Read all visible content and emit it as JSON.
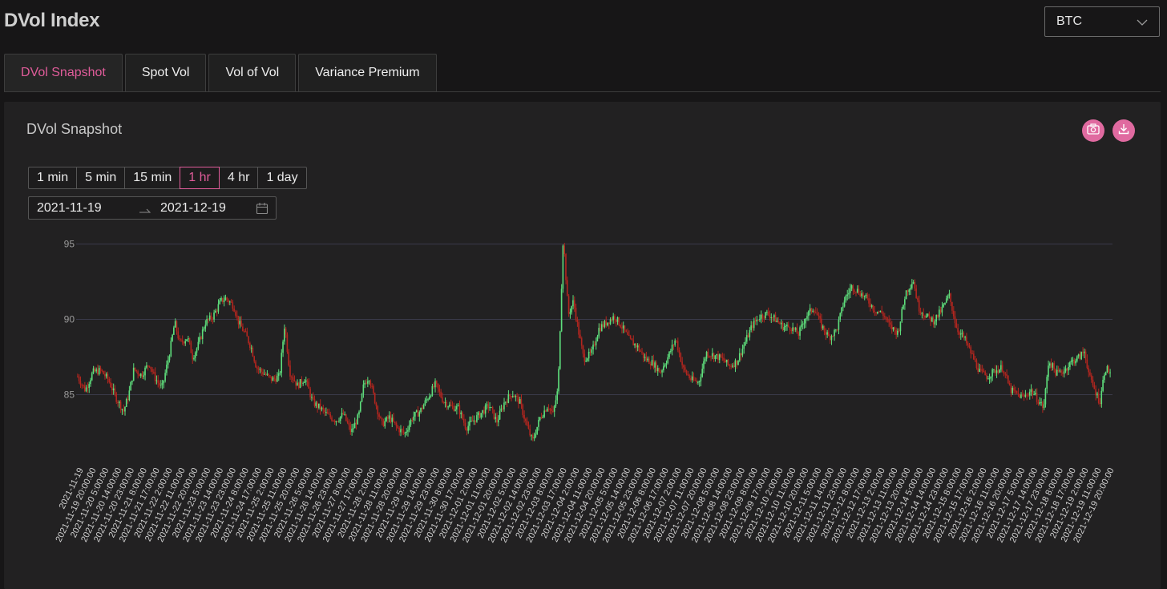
{
  "header": {
    "title": "DVol Index"
  },
  "asset_select": {
    "value": "BTC"
  },
  "tabs": [
    {
      "label": "DVol Snapshot"
    },
    {
      "label": "Spot Vol"
    },
    {
      "label": "Vol of Vol"
    },
    {
      "label": "Variance Premium"
    }
  ],
  "card": {
    "title": "DVol Snapshot",
    "camera_icon": "camera-icon",
    "download_icon": "download-icon"
  },
  "intervals": [
    "1 min",
    "5 min",
    "15 min",
    "1 hr",
    "4 hr",
    "1 day"
  ],
  "active_interval": "1 hr",
  "date_range": {
    "start": "2021-11-19",
    "end": "2021-12-19"
  },
  "colors": {
    "accent": "#e05c9a",
    "up": "#5ede7c",
    "down": "#b3261f",
    "grid": "#3a3a4a"
  },
  "chart_data": {
    "type": "candlestick",
    "y_ticks": [
      85,
      90,
      95
    ],
    "ylim": [
      81,
      96
    ],
    "x_tick_labels": [
      "2021-11-19  20:00:00",
      "2021-11-20  5:00:00",
      "2021-11-20  14:00:00",
      "2021-11-20  23:00:00",
      "2021-11-21  8:00:00",
      "2021-11-21  17:00:00",
      "2021-11-22  2:00:00",
      "2021-11-22  11:00:00",
      "2021-11-22  20:00:00",
      "2021-11-23  5:00:00",
      "2021-11-23  14:00:00",
      "2021-11-23  23:00:00",
      "2021-11-24  8:00:00",
      "2021-11-24  17:00:00",
      "2021-11-25  2:00:00",
      "2021-11-25  11:00:00",
      "2021-11-25  20:00:00",
      "2021-11-26  5:00:00",
      "2021-11-26  14:00:00",
      "2021-11-26  23:00:00",
      "2021-11-27  8:00:00",
      "2021-11-27  17:00:00",
      "2021-11-28  2:00:00",
      "2021-11-28  11:00:00",
      "2021-11-28  20:00:00",
      "2021-11-29  5:00:00",
      "2021-11-29  14:00:00",
      "2021-11-29  23:00:00",
      "2021-11-30  8:00:00",
      "2021-11-30  17:00:00",
      "2021-12-01  2:00:00",
      "2021-12-01  11:00:00",
      "2021-12-01  20:00:00",
      "2021-12-02  5:00:00",
      "2021-12-02  14:00:00",
      "2021-12-02  23:00:00",
      "2021-12-03  8:00:00",
      "2021-12-03  17:00:00",
      "2021-12-04  2:00:00",
      "2021-12-04  11:00:00",
      "2021-12-04  20:00:00",
      "2021-12-05  5:00:00",
      "2021-12-05  14:00:00",
      "2021-12-05  23:00:00",
      "2021-12-06  8:00:00",
      "2021-12-06  17:00:00",
      "2021-12-07  2:00:00",
      "2021-12-07  11:00:00",
      "2021-12-07  20:00:00",
      "2021-12-08  5:00:00",
      "2021-12-08  14:00:00",
      "2021-12-08  23:00:00",
      "2021-12-09  8:00:00",
      "2021-12-09  17:00:00",
      "2021-12-10  2:00:00",
      "2021-12-10  11:00:00",
      "2021-12-10  20:00:00",
      "2021-12-11  5:00:00",
      "2021-12-11  14:00:00",
      "2021-12-11  23:00:00",
      "2021-12-12  8:00:00",
      "2021-12-12  17:00:00",
      "2021-12-13  2:00:00",
      "2021-12-13  11:00:00",
      "2021-12-13  20:00:00",
      "2021-12-14  5:00:00",
      "2021-12-14  14:00:00",
      "2021-12-14  23:00:00",
      "2021-12-15  8:00:00",
      "2021-12-15  17:00:00",
      "2021-12-16  2:00:00",
      "2021-12-16  11:00:00",
      "2021-12-16  20:00:00",
      "2021-12-17  5:00:00",
      "2021-12-17  14:00:00",
      "2021-12-17  23:00:00",
      "2021-12-18  8:00:00",
      "2021-12-18  17:00:00",
      "2021-12-19  2:00:00",
      "2021-12-19  11:00:00",
      "2021-12-19  20:00:00"
    ],
    "first_x_label": "2021-11-19",
    "path_points": [
      [
        0,
        86.2
      ],
      [
        3,
        85.3
      ],
      [
        6,
        86.5
      ],
      [
        9,
        86.6
      ],
      [
        12,
        86.0
      ],
      [
        15,
        84.8
      ],
      [
        18,
        83.9
      ],
      [
        20,
        85.0
      ],
      [
        22,
        86.7
      ],
      [
        25,
        86.3
      ],
      [
        28,
        87.1
      ],
      [
        30,
        86.2
      ],
      [
        33,
        85.4
      ],
      [
        36,
        87.8
      ],
      [
        38,
        89.8
      ],
      [
        40,
        88.4
      ],
      [
        43,
        88.8
      ],
      [
        45,
        87.5
      ],
      [
        47,
        88.2
      ],
      [
        50,
        89.8
      ],
      [
        53,
        90.2
      ],
      [
        56,
        91.2
      ],
      [
        58,
        91.4
      ],
      [
        61,
        90.9
      ],
      [
        63,
        89.8
      ],
      [
        66,
        88.9
      ],
      [
        68,
        88.1
      ],
      [
        70,
        86.8
      ],
      [
        73,
        86.4
      ],
      [
        76,
        86.0
      ],
      [
        79,
        86.2
      ],
      [
        81,
        89.7
      ],
      [
        83,
        86.5
      ],
      [
        86,
        85.6
      ],
      [
        89,
        86.1
      ],
      [
        92,
        84.5
      ],
      [
        95,
        84.1
      ],
      [
        98,
        83.6
      ],
      [
        101,
        83.3
      ],
      [
        104,
        83.7
      ],
      [
        107,
        82.5
      ],
      [
        110,
        83.6
      ],
      [
        112,
        85.7
      ],
      [
        114,
        86.2
      ],
      [
        116,
        84.8
      ],
      [
        119,
        83.0
      ],
      [
        122,
        83.5
      ],
      [
        125,
        82.8
      ],
      [
        128,
        82.4
      ],
      [
        131,
        83.5
      ],
      [
        134,
        83.9
      ],
      [
        137,
        84.8
      ],
      [
        140,
        85.7
      ],
      [
        143,
        84.6
      ],
      [
        146,
        84.2
      ],
      [
        149,
        84.1
      ],
      [
        152,
        82.8
      ],
      [
        155,
        83.3
      ],
      [
        158,
        83.8
      ],
      [
        161,
        84.3
      ],
      [
        164,
        83.2
      ],
      [
        167,
        84.5
      ],
      [
        170,
        85.1
      ],
      [
        173,
        84.5
      ],
      [
        176,
        82.8
      ],
      [
        178,
        81.9
      ],
      [
        181,
        83.5
      ],
      [
        184,
        84.3
      ],
      [
        186,
        83.7
      ],
      [
        188,
        85.4
      ],
      [
        190,
        95.5
      ],
      [
        192,
        90.3
      ],
      [
        194,
        91.2
      ],
      [
        196,
        89.2
      ],
      [
        198,
        87.4
      ],
      [
        201,
        87.7
      ],
      [
        204,
        89.4
      ],
      [
        207,
        89.8
      ],
      [
        210,
        90.2
      ],
      [
        213,
        89.5
      ],
      [
        216,
        88.6
      ],
      [
        219,
        88.2
      ],
      [
        222,
        87.4
      ],
      [
        225,
        87.1
      ],
      [
        228,
        86.5
      ],
      [
        231,
        87.5
      ],
      [
        234,
        88.7
      ],
      [
        237,
        86.7
      ],
      [
        240,
        86.0
      ],
      [
        243,
        85.8
      ],
      [
        246,
        87.8
      ],
      [
        249,
        87.6
      ],
      [
        252,
        87.4
      ],
      [
        255,
        86.9
      ],
      [
        258,
        87.2
      ],
      [
        261,
        88.4
      ],
      [
        264,
        89.6
      ],
      [
        267,
        90.2
      ],
      [
        270,
        90.4
      ],
      [
        273,
        90.0
      ],
      [
        276,
        89.5
      ],
      [
        279,
        89.5
      ],
      [
        282,
        89.0
      ],
      [
        285,
        90.2
      ],
      [
        288,
        90.8
      ],
      [
        291,
        89.6
      ],
      [
        294,
        88.8
      ],
      [
        297,
        89.3
      ],
      [
        300,
        91.3
      ],
      [
        303,
        92.2
      ],
      [
        306,
        91.8
      ],
      [
        309,
        91.3
      ],
      [
        312,
        90.6
      ],
      [
        315,
        90.4
      ],
      [
        318,
        89.5
      ],
      [
        321,
        89.1
      ],
      [
        324,
        91.8
      ],
      [
        327,
        92.6
      ],
      [
        329,
        90.8
      ],
      [
        332,
        90.2
      ],
      [
        335,
        89.9
      ],
      [
        338,
        90.6
      ],
      [
        341,
        91.6
      ],
      [
        344,
        89.4
      ],
      [
        347,
        88.7
      ],
      [
        350,
        87.6
      ],
      [
        353,
        86.5
      ],
      [
        356,
        86.2
      ],
      [
        359,
        86.6
      ],
      [
        362,
        86.8
      ],
      [
        365,
        85.3
      ],
      [
        368,
        85.0
      ],
      [
        370,
        84.8
      ],
      [
        373,
        85.3
      ],
      [
        376,
        84.6
      ],
      [
        378,
        84.1
      ],
      [
        380,
        87.3
      ],
      [
        383,
        86.4
      ],
      [
        386,
        86.6
      ],
      [
        389,
        87.2
      ],
      [
        392,
        87.5
      ],
      [
        394,
        87.9
      ],
      [
        396,
        86.1
      ],
      [
        398,
        85.3
      ],
      [
        400,
        84.5
      ],
      [
        402,
        86.8
      ],
      [
        404,
        86.5
      ]
    ],
    "path_x_max": 404
  }
}
